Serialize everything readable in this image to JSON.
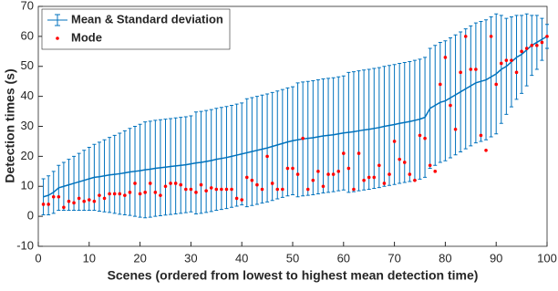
{
  "chart_data": {
    "type": "errorbar",
    "xlabel": "Scenes (ordered from lowest to highest mean detection time)",
    "ylabel": "Detection times (s)",
    "x": [
      1,
      2,
      3,
      4,
      5,
      6,
      7,
      8,
      9,
      10,
      11,
      12,
      13,
      14,
      15,
      16,
      17,
      18,
      19,
      20,
      21,
      22,
      23,
      24,
      25,
      26,
      27,
      28,
      29,
      30,
      31,
      32,
      33,
      34,
      35,
      36,
      37,
      38,
      39,
      40,
      41,
      42,
      43,
      44,
      45,
      46,
      47,
      48,
      49,
      50,
      51,
      52,
      53,
      54,
      55,
      56,
      57,
      58,
      59,
      60,
      61,
      62,
      63,
      64,
      65,
      66,
      67,
      68,
      69,
      70,
      71,
      72,
      73,
      74,
      75,
      76,
      77,
      78,
      79,
      80,
      81,
      82,
      83,
      84,
      85,
      86,
      87,
      88,
      89,
      90,
      91,
      92,
      93,
      94,
      95,
      96,
      97,
      98,
      99,
      100
    ],
    "series": [
      {
        "name": "Mean & Standard deviation",
        "color": "#0072bd",
        "values": [
          6.5,
          7,
          8,
          9.5,
          10,
          10.5,
          11,
          11.5,
          12,
          12.5,
          13,
          13.2,
          13.5,
          13.8,
          14,
          14.2,
          14.5,
          14.8,
          15,
          15.2,
          15.5,
          15.7,
          16,
          16.2,
          16.4,
          16.6,
          16.8,
          17,
          17.2,
          17.5,
          17.8,
          18,
          18.3,
          18.6,
          19,
          19.3,
          19.6,
          20,
          20.4,
          20.8,
          21.2,
          21.6,
          22,
          22.4,
          22.8,
          23.3,
          23.8,
          24.3,
          24.8,
          25.2,
          25.5,
          25.8,
          26,
          26.2,
          26.5,
          26.8,
          27,
          27.2,
          27.5,
          27.8,
          28,
          28.2,
          28.5,
          28.8,
          29,
          29.3,
          29.6,
          30,
          30.3,
          30.6,
          31,
          31.3,
          31.6,
          32,
          32.4,
          33,
          36,
          37,
          38,
          38.5,
          39.5,
          40.5,
          41.5,
          42.5,
          43.5,
          44.5,
          45,
          45.5,
          46.5,
          47.5,
          49,
          50,
          51.5,
          53,
          54,
          55.5,
          57,
          58,
          59,
          60
        ],
        "std": [
          6,
          6.5,
          7,
          7.5,
          8,
          8.5,
          9,
          9.5,
          10,
          10.5,
          11,
          11.5,
          12,
          12.5,
          13,
          13.5,
          14,
          14.5,
          15,
          15.5,
          16,
          16,
          16,
          16,
          16,
          16,
          16,
          16,
          16,
          16,
          17,
          17,
          17,
          17,
          17,
          17,
          17,
          17,
          17,
          17,
          18,
          18,
          18,
          18,
          18,
          18,
          18,
          18,
          18,
          18,
          19,
          19,
          19,
          19,
          19,
          19,
          19,
          19,
          19,
          19,
          20,
          20,
          20,
          20,
          20,
          20,
          20,
          20,
          20,
          20,
          20,
          20,
          20,
          20,
          20,
          20,
          20,
          20,
          20,
          20,
          20,
          20,
          20,
          20,
          20,
          20,
          20,
          20,
          20,
          20,
          18,
          16,
          15,
          14,
          13,
          12,
          10,
          9,
          7,
          4
        ]
      },
      {
        "name": "Mode",
        "color": "#ff0000",
        "values": [
          4,
          4,
          6.5,
          6.5,
          3,
          5,
          4.5,
          6,
          5,
          5.5,
          5,
          7,
          6,
          7.5,
          7.5,
          7.5,
          7,
          8,
          11,
          7.5,
          8,
          11,
          8,
          7,
          10,
          11,
          11,
          10.5,
          9,
          9,
          8,
          10.5,
          8.5,
          9.5,
          9,
          9,
          9,
          9,
          6,
          5.5,
          13,
          12,
          10.5,
          9,
          20,
          11,
          9,
          9,
          16,
          16,
          14,
          26,
          9,
          12,
          15,
          10,
          14,
          14,
          15,
          21,
          16,
          9,
          21,
          12,
          13,
          13,
          17,
          11,
          14,
          25,
          19,
          18,
          14,
          12,
          27,
          26,
          17,
          15,
          44,
          53,
          37,
          29,
          48,
          60,
          49,
          49,
          27,
          22,
          60,
          44,
          51,
          52,
          52,
          48,
          55,
          56,
          57,
          57,
          58,
          60
        ]
      }
    ],
    "xlim": [
      0,
      100
    ],
    "xticks": [
      0,
      10,
      20,
      30,
      40,
      50,
      60,
      70,
      80,
      90,
      100
    ],
    "ylim": [
      -10,
      70
    ],
    "yticks": [
      -10,
      0,
      10,
      20,
      30,
      40,
      50,
      60,
      70
    ],
    "legend": "upper-left"
  }
}
